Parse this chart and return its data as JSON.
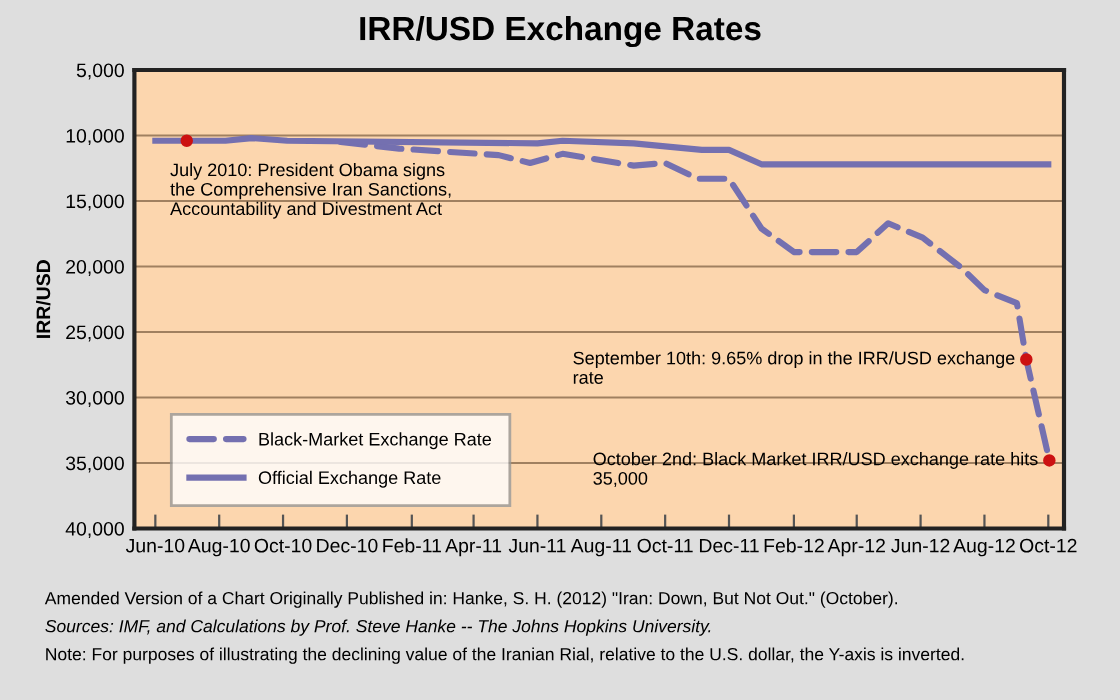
{
  "chart_data": {
    "type": "line",
    "title": "IRR/USD Exchange Rates",
    "ylabel": "IRR/USD",
    "series": [
      {
        "name": "Black-Market Exchange Rate",
        "color": "#7470b0",
        "line_style": "dashed",
        "x": [
          "2010-11-25",
          "2011-01-20",
          "2011-04-25",
          "2011-05-25",
          "2011-06-25",
          "2011-09-01",
          "2011-10-01",
          "2011-11-01",
          "2011-12-01",
          "2012-01-01",
          "2012-02-01",
          "2012-04-01",
          "2012-05-01",
          "2012-06-03",
          "2012-07-10",
          "2012-08-01",
          "2012-09-01",
          "2012-09-10",
          "2012-10-02"
        ],
        "values": [
          10500,
          11000,
          11500,
          12100,
          11400,
          12300,
          12100,
          13300,
          13300,
          17100,
          18900,
          18900,
          16700,
          17800,
          20100,
          21800,
          22800,
          27100,
          34800
        ]
      },
      {
        "name": "Official Exchange Rate",
        "color": "#7470b0",
        "line_style": "solid",
        "x": [
          "2010-06-01",
          "2010-08-07",
          "2010-09-01",
          "2010-10-05",
          "2011-06-01",
          "2011-06-25",
          "2011-09-01",
          "2011-11-05",
          "2011-12-01",
          "2012-01-01",
          "2012-10-01"
        ],
        "values": [
          10400,
          10400,
          10200,
          10400,
          10600,
          10400,
          10600,
          11100,
          11100,
          12200,
          12200
        ]
      }
    ],
    "xlim": [
      "2010-05-12",
      "2012-10-16"
    ],
    "xticks": [
      {
        "value": "2010-06-01",
        "label": "Jun-10"
      },
      {
        "value": "2010-08-01",
        "label": "Aug-10"
      },
      {
        "value": "2010-10-01",
        "label": "Oct-10"
      },
      {
        "value": "2010-12-01",
        "label": "Dec-10"
      },
      {
        "value": "2011-02-01",
        "label": "Feb-11"
      },
      {
        "value": "2011-04-01",
        "label": "Apr-11"
      },
      {
        "value": "2011-06-01",
        "label": "Jun-11"
      },
      {
        "value": "2011-08-01",
        "label": "Aug-11"
      },
      {
        "value": "2011-10-01",
        "label": "Oct-11"
      },
      {
        "value": "2011-12-01",
        "label": "Dec-11"
      },
      {
        "value": "2012-02-01",
        "label": "Feb-12"
      },
      {
        "value": "2012-04-01",
        "label": "Apr-12"
      },
      {
        "value": "2012-06-01",
        "label": "Jun-12"
      },
      {
        "value": "2012-08-01",
        "label": "Aug-12"
      },
      {
        "value": "2012-10-01",
        "label": "Oct-12"
      }
    ],
    "ylim": [
      40000,
      5000
    ],
    "yticks": [
      {
        "value": 5000,
        "label": "5,000"
      },
      {
        "value": 10000,
        "label": "10,000"
      },
      {
        "value": 15000,
        "label": "15,000"
      },
      {
        "value": 20000,
        "label": "20,000"
      },
      {
        "value": 25000,
        "label": "25,000"
      },
      {
        "value": 30000,
        "label": "30,000"
      },
      {
        "value": 35000,
        "label": "35,000"
      },
      {
        "value": 40000,
        "label": "40,000"
      }
    ],
    "grid": "y",
    "legend": "bottom left",
    "marker": "none",
    "annotations": [
      {
        "text": "July 2010: President Obama signs\nthe Comprehensive Iran Sanctions,\nAccountability and Divestment Act",
        "x": "2010-07-01",
        "y": 10400
      },
      {
        "text": "September 10th: 9.65% drop in the IRR/USD exchange\nrate",
        "x": "2012-09-10",
        "y": 27100
      },
      {
        "text": "October 2nd: Black Market IRR/USD exchange rate hits\n35,000",
        "x": "2012-10-02",
        "y": 34800
      },
      "Amended Version of a Chart Originally Published in: Hanke, S. H. (2012) \"Iran: Down, But Not Out.\" (October).",
      "Sources: IMF, and Calculations by Prof. Steve Hanke -- The Johns Hopkins University.",
      "Note: For purposes of illustrating the declining value of the Iranian Rial, relative to the U.S. dollar, the Y-axis is inverted."
    ]
  }
}
